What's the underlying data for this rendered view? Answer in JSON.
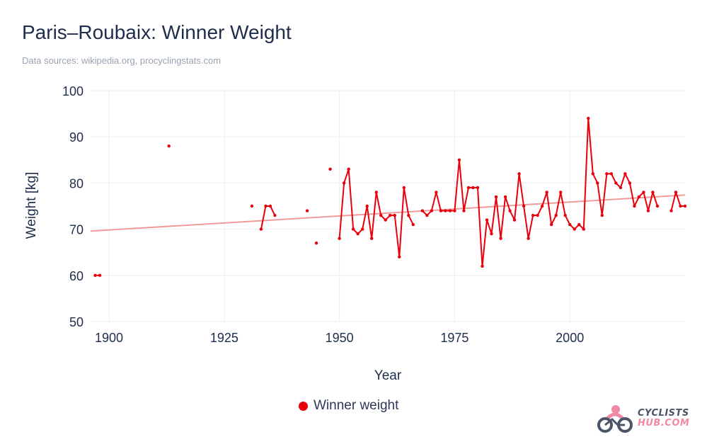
{
  "colors": {
    "series": "#e8000b",
    "trend": "#f19a9a",
    "grid": "#eceef2",
    "text": "#1f2d4d"
  },
  "logo": {
    "line1": "CYCLISTS",
    "line2": "HUB.COM",
    "icon": "bicycle-logo-icon"
  },
  "chart_data": {
    "type": "line",
    "title": "Paris–Roubaix: Winner Weight",
    "subtitle": "Data sources: wikipedia.org, procyclingstats.com",
    "xlabel": "Year",
    "ylabel": "Weight [kg]",
    "xlim": [
      1896,
      2025
    ],
    "ylim": [
      50,
      100
    ],
    "x_ticks": [
      1900,
      1925,
      1950,
      1975,
      2000
    ],
    "y_ticks": [
      50,
      60,
      70,
      80,
      90,
      100
    ],
    "legend": {
      "label": "Winner weight",
      "position": "bottom"
    },
    "trend": {
      "x": [
        1896,
        2025
      ],
      "y": [
        69.6,
        77.4
      ]
    },
    "series": [
      {
        "name": "Winner weight",
        "x": [
          1897,
          1898,
          1913,
          1931,
          1933,
          1934,
          1935,
          1936,
          1943,
          1945,
          1948,
          1950,
          1951,
          1952,
          1953,
          1954,
          1955,
          1956,
          1957,
          1958,
          1959,
          1960,
          1961,
          1962,
          1963,
          1964,
          1965,
          1966,
          1968,
          1969,
          1970,
          1971,
          1972,
          1973,
          1974,
          1975,
          1976,
          1977,
          1978,
          1979,
          1980,
          1981,
          1982,
          1983,
          1984,
          1985,
          1986,
          1987,
          1988,
          1989,
          1990,
          1991,
          1992,
          1993,
          1994,
          1995,
          1996,
          1997,
          1998,
          1999,
          2000,
          2001,
          2002,
          2003,
          2004,
          2005,
          2006,
          2007,
          2008,
          2009,
          2010,
          2011,
          2012,
          2013,
          2014,
          2015,
          2016,
          2017,
          2018,
          2019,
          2022,
          2023,
          2024,
          2025
        ],
        "y": [
          60,
          60,
          88,
          75,
          70,
          75,
          75,
          73,
          74,
          67,
          83,
          68,
          80,
          83,
          70,
          69,
          70,
          75,
          68,
          78,
          73,
          72,
          73,
          73,
          64,
          79,
          73,
          71,
          74,
          73,
          74,
          78,
          74,
          74,
          74,
          74,
          85,
          74,
          79,
          79,
          79,
          62,
          72,
          69,
          77,
          68,
          77,
          74,
          72,
          82,
          75,
          68,
          73,
          73,
          75,
          78,
          71,
          73,
          78,
          73,
          71,
          70,
          71,
          70,
          94,
          82,
          80,
          73,
          82,
          82,
          80,
          79,
          82,
          80,
          75,
          77,
          78,
          74,
          78,
          75,
          74,
          78,
          75,
          75
        ]
      }
    ]
  }
}
